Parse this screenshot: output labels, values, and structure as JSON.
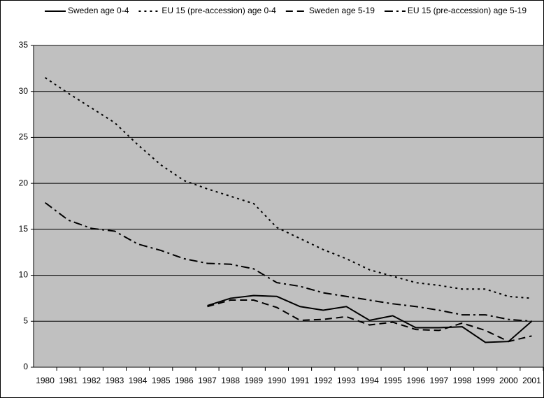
{
  "chart_data": {
    "type": "line",
    "categories": [
      "1980",
      "1981",
      "1982",
      "1983",
      "1984",
      "1985",
      "1986",
      "1987",
      "1988",
      "1989",
      "1990",
      "1991",
      "1992",
      "1993",
      "1994",
      "1995",
      "1996",
      "1997",
      "1998",
      "1999",
      "2000",
      "2001"
    ],
    "series": [
      {
        "name": "Sweden age 0-4",
        "color": "#000000",
        "dash": "solid",
        "values": [
          null,
          null,
          null,
          null,
          null,
          null,
          null,
          6.7,
          7.5,
          7.8,
          7.7,
          6.6,
          6.2,
          6.6,
          5.1,
          5.6,
          4.3,
          4.3,
          4.4,
          2.7,
          2.8,
          5.0
        ]
      },
      {
        "name": "EU 15 (pre-accession) age 0-4",
        "color": "#000000",
        "dash": "dotted",
        "values": [
          31.5,
          29.8,
          28.2,
          26.6,
          24.2,
          22.0,
          20.3,
          19.4,
          18.6,
          17.8,
          15.2,
          14.0,
          12.8,
          11.8,
          10.6,
          9.9,
          9.2,
          8.9,
          8.5,
          8.5,
          7.7,
          7.5
        ]
      },
      {
        "name": "Sweden age 5-19",
        "color": "#000000",
        "dash": "dashed",
        "values": [
          null,
          null,
          null,
          null,
          null,
          null,
          null,
          6.6,
          7.3,
          7.3,
          6.5,
          5.1,
          5.2,
          5.5,
          4.6,
          4.9,
          4.1,
          4.0,
          4.8,
          4.0,
          2.8,
          3.4
        ]
      },
      {
        "name": "EU 15 (pre-accession) age 5-19",
        "color": "#000000",
        "dash": "dashdot",
        "values": [
          17.9,
          16.0,
          15.1,
          14.8,
          13.4,
          12.7,
          11.8,
          11.3,
          11.2,
          10.7,
          9.2,
          8.8,
          8.1,
          7.7,
          7.3,
          6.9,
          6.6,
          6.2,
          5.7,
          5.7,
          5.2,
          5.0
        ]
      }
    ],
    "ylim": [
      0,
      35
    ],
    "yticks": [
      0,
      5,
      10,
      15,
      20,
      25,
      30,
      35
    ],
    "grid": true,
    "plot_background": "#c0c0c0",
    "legend": "top"
  }
}
